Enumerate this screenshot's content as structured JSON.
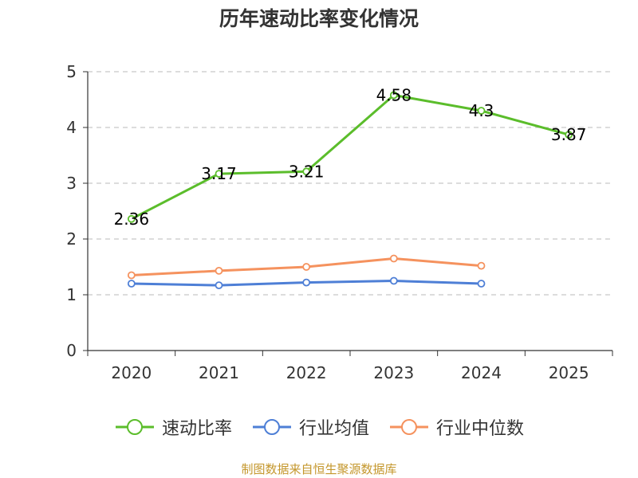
{
  "chart_data": {
    "type": "line",
    "title": "历年速动比率变化情况",
    "categories": [
      "2020",
      "2021",
      "2022",
      "2023",
      "2024",
      "2025"
    ],
    "ylim": [
      0,
      5
    ],
    "yticks": [
      0,
      1,
      2,
      3,
      4,
      5
    ],
    "grid": true,
    "legend_position": "bottom",
    "series": [
      {
        "name": "速动比率",
        "color": "#5bbd2b",
        "show_labels": true,
        "values": [
          2.36,
          3.17,
          3.21,
          4.58,
          4.3,
          3.87
        ],
        "labels": [
          "2.36",
          "3.17",
          "3.21",
          "4.58",
          "4.3",
          "3.87"
        ]
      },
      {
        "name": "行业均值",
        "color": "#4e7fd6",
        "show_labels": false,
        "values": [
          1.2,
          1.17,
          1.22,
          1.25,
          1.2,
          null
        ]
      },
      {
        "name": "行业中位数",
        "color": "#f5925e",
        "show_labels": false,
        "values": [
          1.35,
          1.43,
          1.5,
          1.65,
          1.52,
          null
        ]
      }
    ]
  },
  "source": "制图数据来自恒生聚源数据库"
}
